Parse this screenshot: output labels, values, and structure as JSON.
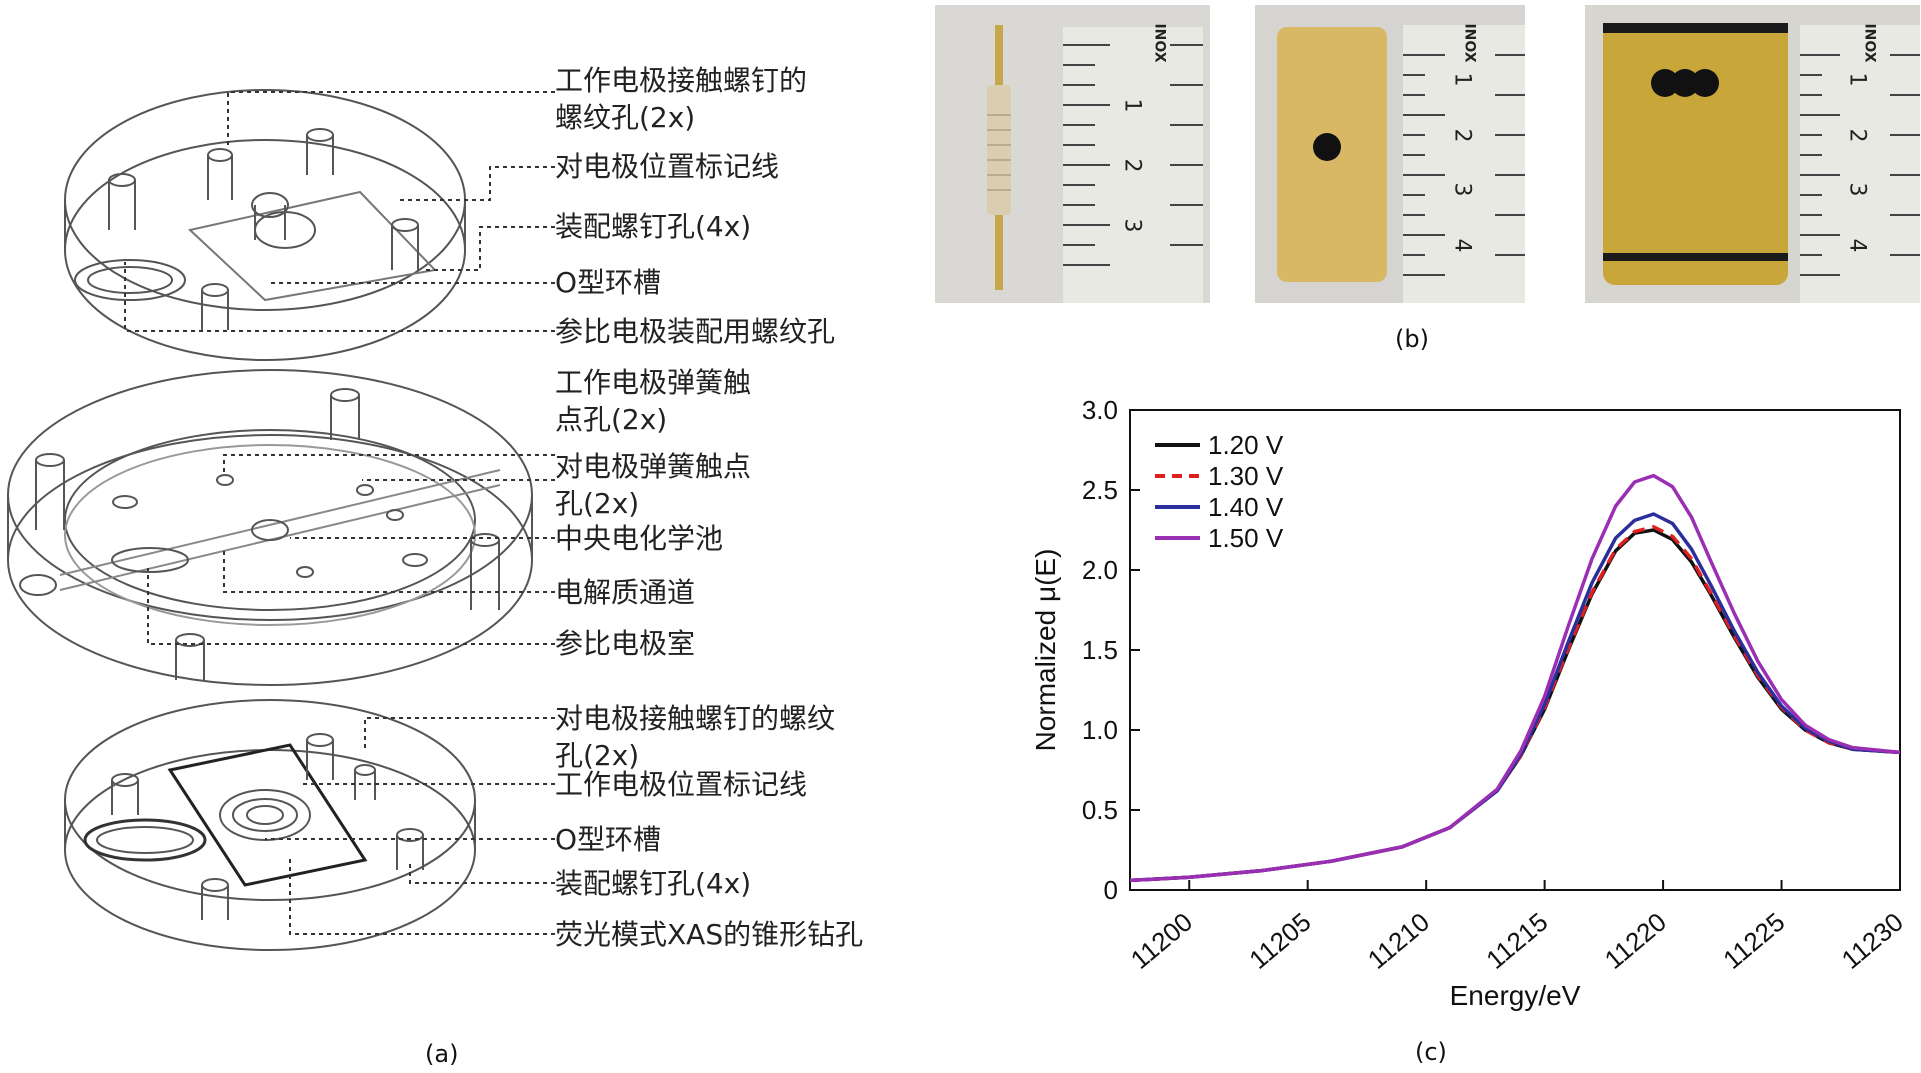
{
  "panel_a": {
    "caption": "(a)",
    "callouts": [
      "工作电极接触螺钉的\n螺纹孔(2x)",
      "对电极位置标记线",
      "装配螺钉孔(4x)",
      "O型环槽",
      "参比电极装配用螺纹孔",
      "工作电极弹簧触\n点孔(2x)",
      "对电极弹簧触点\n孔(2x)",
      "中央电化学池",
      "电解质通道",
      "参比电极室",
      "对电极接触螺钉的螺纹\n孔(2x)",
      "工作电极位置标记线",
      "O型环槽",
      "装配螺钉孔(4x)",
      "荧光模式XAS的锥形钻孔"
    ]
  },
  "panel_b": {
    "caption": "(b)",
    "photos": [
      {
        "subject": "spring-contact-pin",
        "ruler_brand": "INOX",
        "ruler_ticks": [
          "1",
          "2",
          "3"
        ]
      },
      {
        "subject": "single-hole-plate",
        "ruler_brand": "INOX",
        "ruler_ticks": [
          "1",
          "2",
          "3",
          "4"
        ]
      },
      {
        "subject": "double-hole-plate",
        "ruler_brand": "INOX",
        "ruler_ticks": [
          "1",
          "2",
          "3",
          "4"
        ]
      }
    ]
  },
  "panel_c": {
    "caption": "(c)"
  },
  "colors": {
    "s1": "#111111",
    "s2": "#e02020",
    "s3": "#2b2f9c",
    "s4": "#9a2fb4",
    "plate": "#d8b865",
    "dark_plate": "#c9a63a",
    "ruler": "#e9e9e4",
    "photo_bg": "#d7d5d0"
  },
  "chart_data": {
    "type": "line",
    "xlabel": "Energy/eV",
    "ylabel": "Normalized μ(E)",
    "xlim": [
      11197.5,
      11230
    ],
    "ylim": [
      0,
      3.0
    ],
    "xticks": [
      11200,
      11205,
      11210,
      11215,
      11220,
      11225,
      11230
    ],
    "yticks": [
      "0",
      "0.5",
      "1.0",
      "1.5",
      "2.0",
      "2.5",
      "3.0"
    ],
    "legend_position": "top-left",
    "series": [
      {
        "name": "1.20 V",
        "dash": "solid",
        "color": "#111111",
        "x": [
          11197.5,
          11200,
          11203,
          11206,
          11209,
          11211,
          11213,
          11214,
          11215,
          11216,
          11217,
          11218,
          11218.8,
          11219.6,
          11220.4,
          11221.2,
          11222,
          11223,
          11224,
          11225,
          11226,
          11227,
          11228,
          11230
        ],
        "y": [
          0.06,
          0.08,
          0.12,
          0.18,
          0.27,
          0.39,
          0.62,
          0.84,
          1.13,
          1.5,
          1.85,
          2.12,
          2.23,
          2.25,
          2.19,
          2.05,
          1.85,
          1.58,
          1.33,
          1.13,
          1.0,
          0.92,
          0.88,
          0.86
        ]
      },
      {
        "name": "1.30 V",
        "dash": "dashed",
        "color": "#e02020",
        "x": [
          11197.5,
          11200,
          11203,
          11206,
          11209,
          11211,
          11213,
          11214,
          11215,
          11216,
          11217,
          11218,
          11218.8,
          11219.6,
          11220.4,
          11221.2,
          11222,
          11223,
          11224,
          11225,
          11226,
          11227,
          11228,
          11230
        ],
        "y": [
          0.06,
          0.08,
          0.12,
          0.18,
          0.27,
          0.39,
          0.62,
          0.84,
          1.14,
          1.51,
          1.86,
          2.13,
          2.24,
          2.27,
          2.21,
          2.07,
          1.86,
          1.59,
          1.34,
          1.14,
          1.0,
          0.92,
          0.88,
          0.86
        ]
      },
      {
        "name": "1.40 V",
        "dash": "solid",
        "color": "#2b2f9c",
        "x": [
          11197.5,
          11200,
          11203,
          11206,
          11209,
          11211,
          11213,
          11214,
          11215,
          11216,
          11217,
          11218,
          11218.8,
          11219.6,
          11220.4,
          11221.2,
          11222,
          11223,
          11224,
          11225,
          11226,
          11227,
          11228,
          11230
        ],
        "y": [
          0.06,
          0.08,
          0.12,
          0.18,
          0.27,
          0.39,
          0.62,
          0.85,
          1.16,
          1.55,
          1.92,
          2.2,
          2.31,
          2.35,
          2.29,
          2.13,
          1.91,
          1.62,
          1.36,
          1.15,
          1.01,
          0.93,
          0.88,
          0.86
        ]
      },
      {
        "name": "1.50 V",
        "dash": "solid",
        "color": "#9a2fb4",
        "x": [
          11197.5,
          11200,
          11203,
          11206,
          11209,
          11211,
          11213,
          11214,
          11215,
          11216,
          11217,
          11218,
          11218.8,
          11219.6,
          11220.4,
          11221.2,
          11222,
          11223,
          11224,
          11225,
          11226,
          11227,
          11228,
          11230
        ],
        "y": [
          0.06,
          0.08,
          0.12,
          0.18,
          0.27,
          0.39,
          0.63,
          0.87,
          1.21,
          1.65,
          2.07,
          2.4,
          2.55,
          2.59,
          2.52,
          2.33,
          2.06,
          1.73,
          1.43,
          1.19,
          1.03,
          0.94,
          0.89,
          0.86
        ]
      }
    ]
  }
}
